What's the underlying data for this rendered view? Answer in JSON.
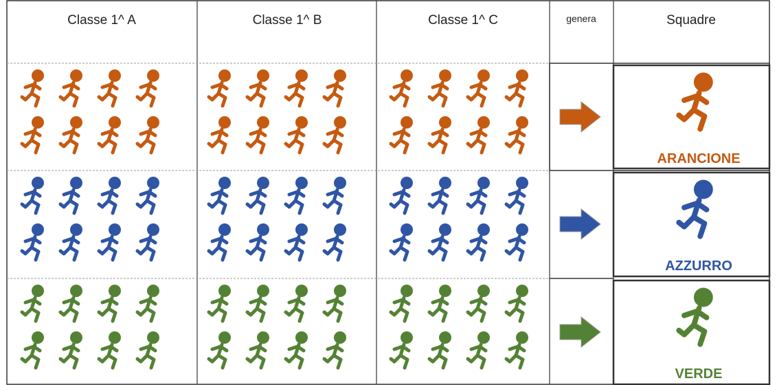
{
  "header": {
    "columns": [
      "Classe 1^ A",
      "Classe 1^ B",
      "Classe 1^ C",
      "genera",
      "Squadre"
    ]
  },
  "teams": [
    {
      "label": "ARANCIONE",
      "color": "#c55a11"
    },
    {
      "label": "AZZURRO",
      "color": "#2f55a4"
    },
    {
      "label": "VERDE",
      "color": "#548235"
    }
  ]
}
